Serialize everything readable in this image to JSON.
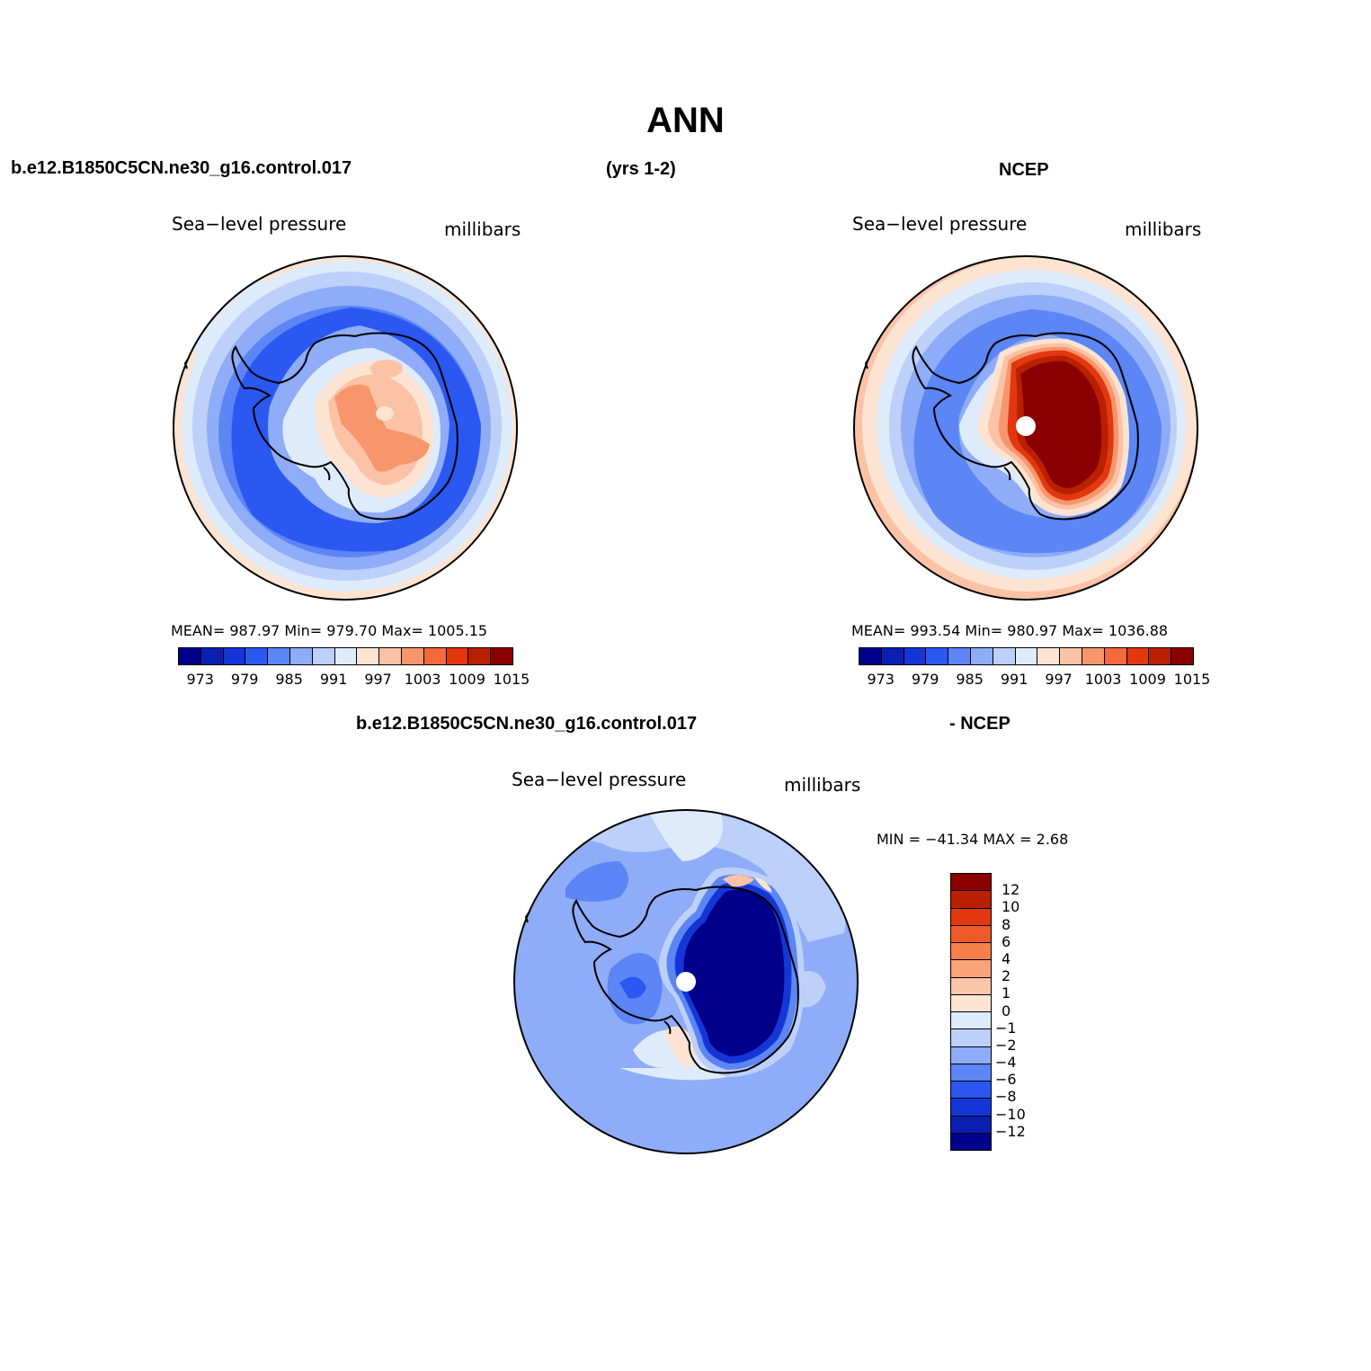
{
  "title": "ANN",
  "top_left": {
    "case": "b.e12.B1850C5CN.ne30_g16.control.017",
    "years": "(yrs 1-2)",
    "variable": "Sea−level pressure",
    "units": "millibars",
    "stats": "MEAN= 987.97   Min= 979.70   Max= 1005.15"
  },
  "top_right": {
    "case": "NCEP",
    "variable": "Sea−level pressure",
    "units": "millibars",
    "stats": "MEAN= 993.54   Min= 980.97   Max= 1036.88"
  },
  "bottom": {
    "case": "b.e12.B1850C5CN.ne30_g16.control.017",
    "minus": "- NCEP",
    "variable": "Sea−level pressure",
    "units": "millibars",
    "minmax": "MIN = −41.34 MAX =    2.68"
  },
  "abs_colorbar": {
    "colors": [
      "#00008a",
      "#0a1fb0",
      "#1536d6",
      "#2b58f0",
      "#5c85f5",
      "#8eacf7",
      "#bcd0f9",
      "#deebfb",
      "#fde4d2",
      "#fcc2a6",
      "#f7966d",
      "#f3693d",
      "#e2370f",
      "#b82000",
      "#8a0000"
    ],
    "ticks": [
      "973",
      "979",
      "985",
      "991",
      "997",
      "1003",
      "1009",
      "1015"
    ]
  },
  "diff_colorbar": {
    "colors": [
      "#8a0000",
      "#b82000",
      "#e2370f",
      "#f05a2a",
      "#f7804a",
      "#fba47a",
      "#fcc6aa",
      "#fde4d2",
      "#deebfb",
      "#bcd0f9",
      "#8eacf7",
      "#5c85f5",
      "#2b58f0",
      "#1536d6",
      "#0a1fb0",
      "#00008a"
    ],
    "ticks": [
      "12",
      "10",
      "8",
      "6",
      "4",
      "2",
      "1",
      "0",
      "−1",
      "−2",
      "−4",
      "−6",
      "−8",
      "−10",
      "−12"
    ]
  }
}
